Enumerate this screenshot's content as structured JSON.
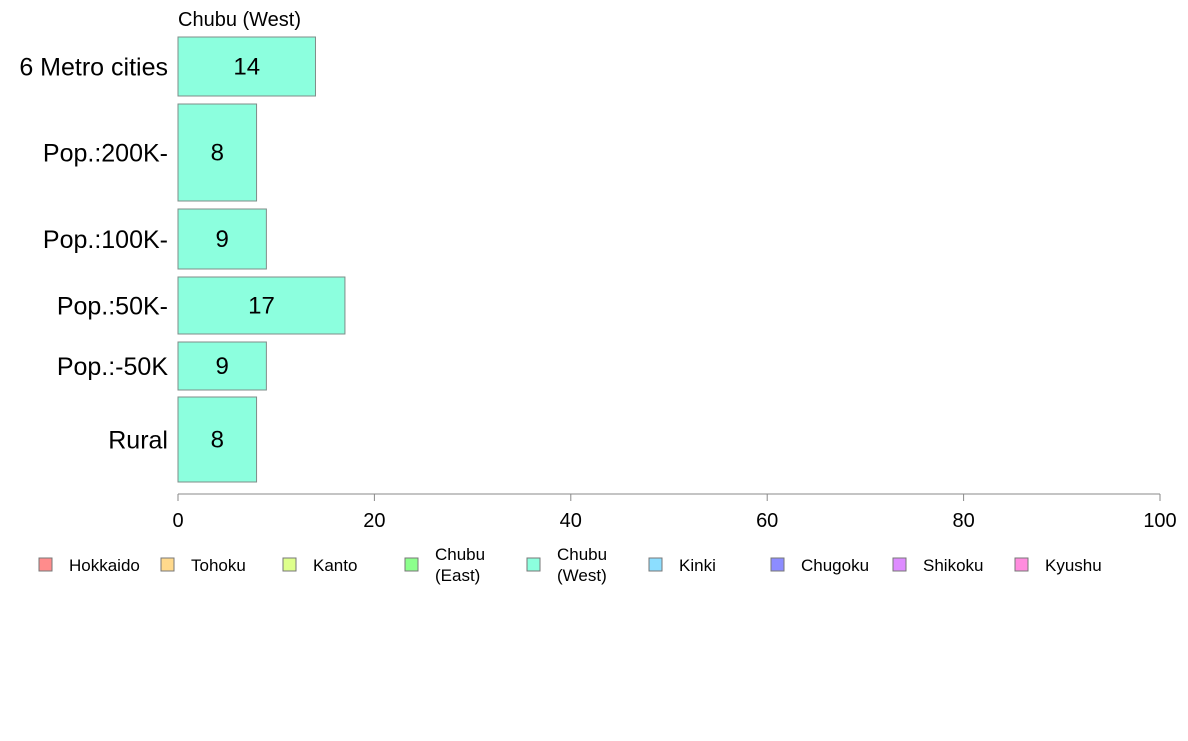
{
  "chart_data": {
    "type": "bar",
    "orientation": "horizontal",
    "title": "Chubu (West)",
    "categories": [
      "6 Metro cities",
      "Pop.:200K-",
      "Pop.:100K-",
      "Pop.:50K-",
      "Pop.:-50K",
      "Rural"
    ],
    "values": [
      14,
      8,
      9,
      17,
      9,
      8
    ],
    "xlim": [
      0,
      100
    ],
    "xticks": [
      "0",
      "20",
      "40",
      "60",
      "80",
      "100"
    ],
    "bar_color": "#8cffde",
    "grid": false,
    "legend_position": "bottom",
    "legend": [
      {
        "label": "Hokkaido",
        "color": "#ff8c8c"
      },
      {
        "label": "Tohoku",
        "color": "#ffd98c"
      },
      {
        "label": "Kanto",
        "color": "#deff8c"
      },
      {
        "label": "Chubu\n(East)",
        "color": "#8cff8c"
      },
      {
        "label": "Chubu\n(West)",
        "color": "#8cffde"
      },
      {
        "label": "Kinki",
        "color": "#8cdeff"
      },
      {
        "label": "Chugoku",
        "color": "#8c8cff"
      },
      {
        "label": "Shikoku",
        "color": "#de8cff"
      },
      {
        "label": "Kyushu",
        "color": "#ff8cde"
      }
    ]
  }
}
